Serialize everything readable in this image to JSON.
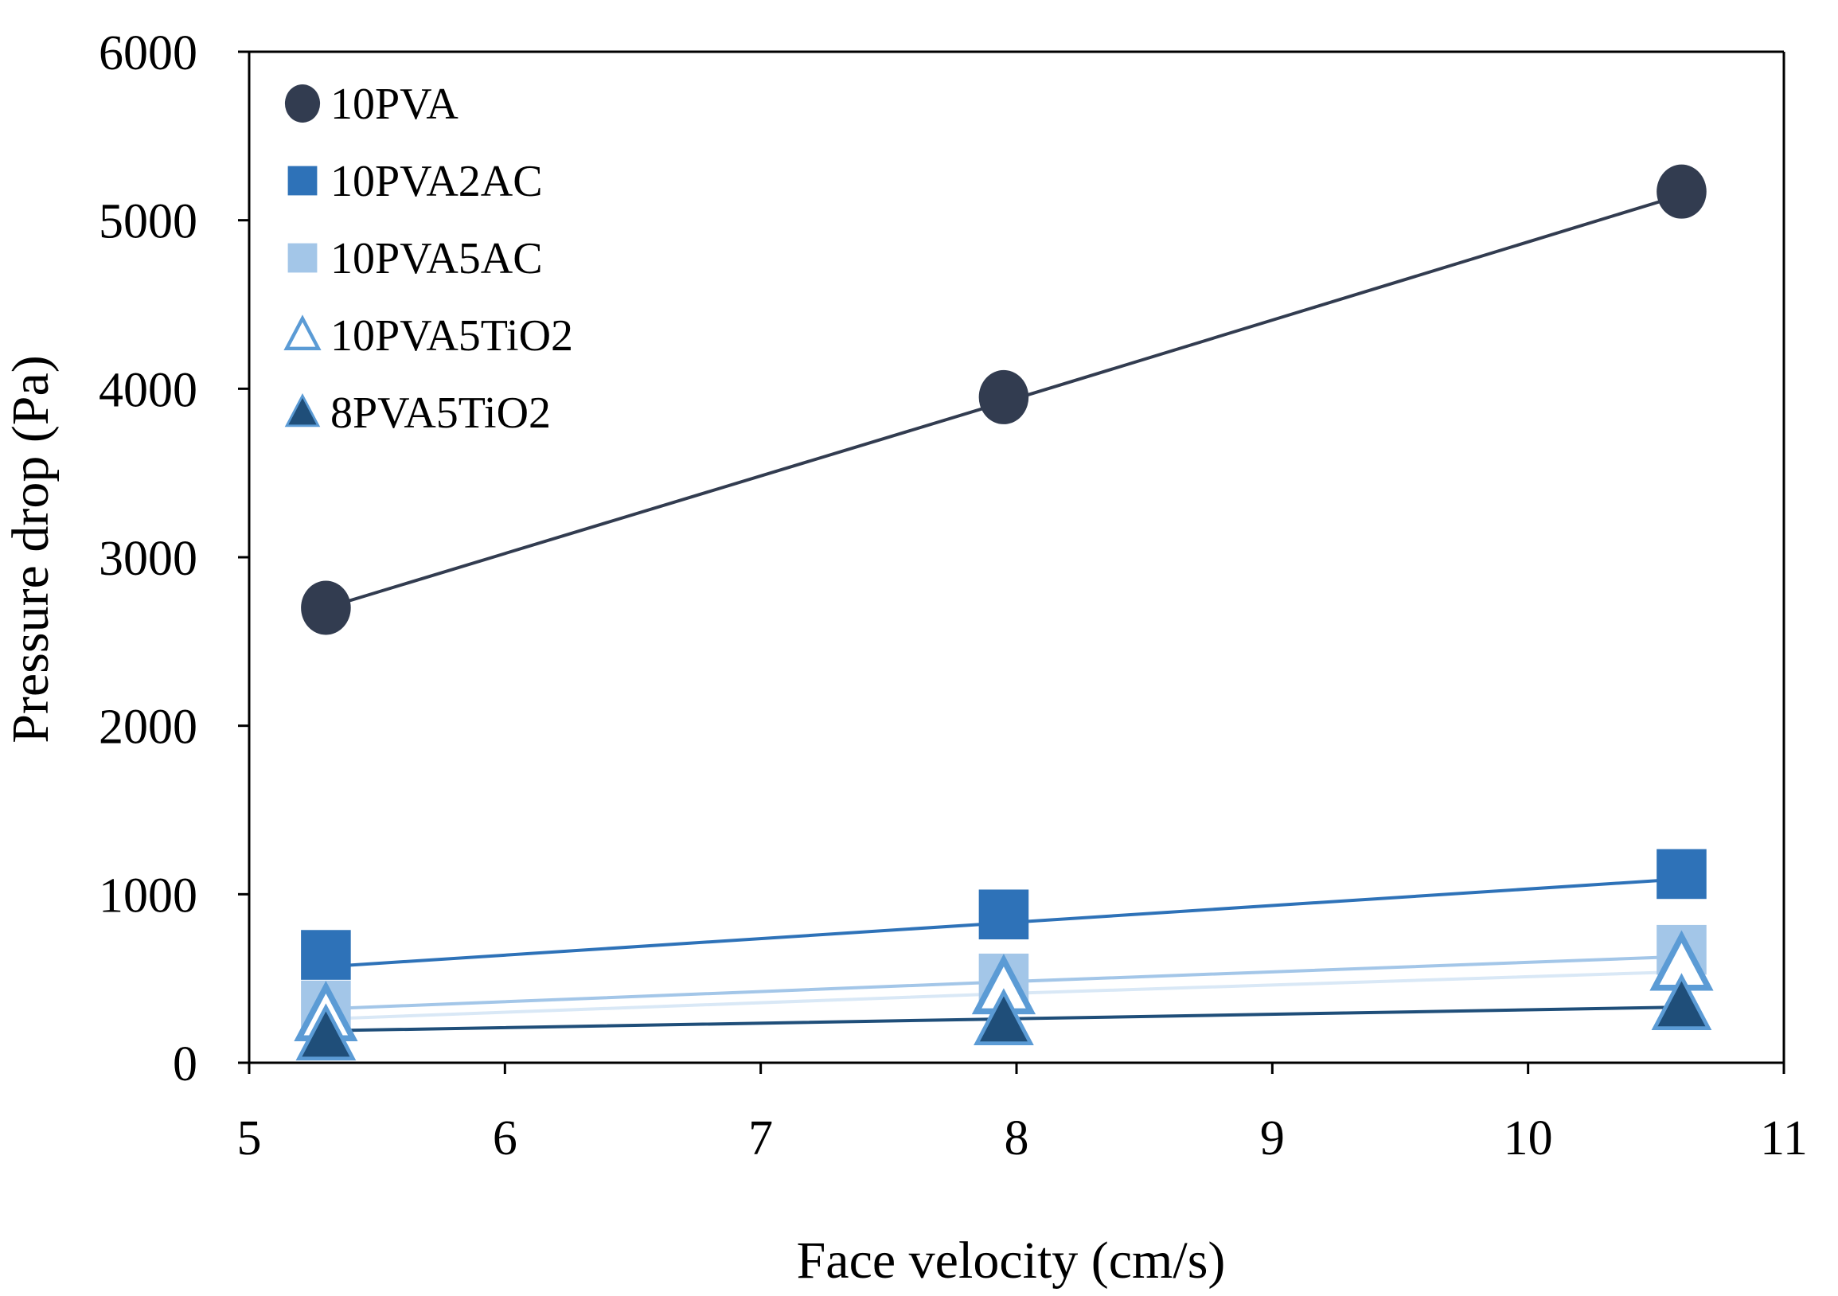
{
  "chart_data": {
    "type": "scatter",
    "xlabel": "Face velocity (cm/s)",
    "ylabel": "Pressure drop (Pa)",
    "xlim": [
      5,
      11
    ],
    "ylim": [
      0,
      6000
    ],
    "xticks": [
      5,
      6,
      7,
      8,
      9,
      10,
      11
    ],
    "yticks": [
      0,
      1000,
      2000,
      3000,
      4000,
      5000,
      6000
    ],
    "x_tick_labels": [
      "5",
      "6",
      "7",
      "8",
      "9",
      "10",
      "11"
    ],
    "y_tick_labels": [
      "0",
      "1000",
      "2000",
      "3000",
      "4000",
      "5000",
      "6000"
    ],
    "grid": false,
    "legend_position": "top-left",
    "trendlines": "linear",
    "series": [
      {
        "name": "10PVA",
        "marker": "circle",
        "color": "#323c50",
        "line_color": "#323c50",
        "x": [
          5.3,
          7.95,
          10.6
        ],
        "y": [
          2700,
          3950,
          5170
        ],
        "trend": [
          2700,
          3920,
          5150
        ]
      },
      {
        "name": "10PVA2AC",
        "marker": "square",
        "color": "#2e72b8",
        "line_color": "#2e72b8",
        "x": [
          5.3,
          7.95,
          10.6
        ],
        "y": [
          640,
          880,
          1120
        ],
        "trend": [
          570,
          830,
          1090
        ]
      },
      {
        "name": "10PVA5AC",
        "marker": "square",
        "color": "#a3c6e8",
        "line_color": "#a3c6e8",
        "x": [
          5.3,
          7.95,
          10.6
        ],
        "y": [
          340,
          500,
          670
        ],
        "trend": [
          320,
          480,
          630
        ]
      },
      {
        "name": "10PVA5TiO2",
        "marker": "triangle-open",
        "color": "#5b9bd5",
        "line_color": "#d9e8f6",
        "x": [
          5.3,
          7.95,
          10.6
        ],
        "y": [
          280,
          440,
          580
        ],
        "trend": [
          260,
          410,
          540
        ]
      },
      {
        "name": "8PVA5TiO2",
        "marker": "triangle",
        "color": "#1f4e79",
        "line_color": "#1f4e79",
        "x": [
          5.3,
          7.95,
          10.6
        ],
        "y": [
          160,
          250,
          340
        ],
        "trend": [
          190,
          260,
          330
        ]
      }
    ]
  }
}
